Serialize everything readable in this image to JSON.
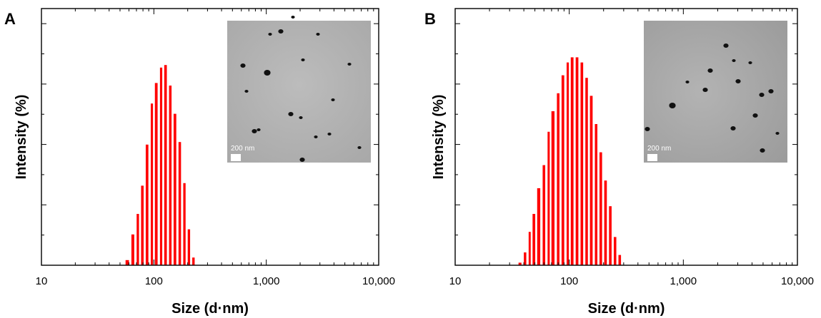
{
  "chart_data": [
    {
      "panel": "A",
      "type": "bar",
      "xlabel": "Size (d·nm)",
      "ylabel": "Intensity (%)",
      "x_scale": "log",
      "xlim": [
        10,
        10000
      ],
      "xticks": [
        "10",
        "100",
        "1,000",
        "10,000"
      ],
      "yticks_labeled": false,
      "bar_color": "#ff0000",
      "bars": [
        {
          "x": 58,
          "y": 2
        },
        {
          "x": 65,
          "y": 12
        },
        {
          "x": 72,
          "y": 20
        },
        {
          "x": 79,
          "y": 31
        },
        {
          "x": 87,
          "y": 47
        },
        {
          "x": 96,
          "y": 63
        },
        {
          "x": 105,
          "y": 71
        },
        {
          "x": 116,
          "y": 77
        },
        {
          "x": 127,
          "y": 78
        },
        {
          "x": 140,
          "y": 70
        },
        {
          "x": 154,
          "y": 59
        },
        {
          "x": 170,
          "y": 48
        },
        {
          "x": 187,
          "y": 32
        },
        {
          "x": 205,
          "y": 14
        },
        {
          "x": 225,
          "y": 3
        }
      ],
      "inset": {
        "scale_label": "200 nm"
      }
    },
    {
      "panel": "B",
      "type": "bar",
      "xlabel": "Size (d·nm)",
      "ylabel": "Intensity (%)",
      "x_scale": "log",
      "xlim": [
        10,
        10000
      ],
      "xticks": [
        "10",
        "100",
        "1,000",
        "10,000"
      ],
      "yticks_labeled": false,
      "bar_color": "#ff0000",
      "bars": [
        {
          "x": 37,
          "y": 1
        },
        {
          "x": 41,
          "y": 5
        },
        {
          "x": 45,
          "y": 13
        },
        {
          "x": 49,
          "y": 20
        },
        {
          "x": 54,
          "y": 30
        },
        {
          "x": 60,
          "y": 39
        },
        {
          "x": 66,
          "y": 52
        },
        {
          "x": 72,
          "y": 60
        },
        {
          "x": 80,
          "y": 67
        },
        {
          "x": 88,
          "y": 74
        },
        {
          "x": 97,
          "y": 79
        },
        {
          "x": 106,
          "y": 81
        },
        {
          "x": 117,
          "y": 81
        },
        {
          "x": 129,
          "y": 79
        },
        {
          "x": 142,
          "y": 73
        },
        {
          "x": 156,
          "y": 66
        },
        {
          "x": 172,
          "y": 55
        },
        {
          "x": 189,
          "y": 44
        },
        {
          "x": 208,
          "y": 33
        },
        {
          "x": 229,
          "y": 23
        },
        {
          "x": 252,
          "y": 11
        },
        {
          "x": 277,
          "y": 4
        }
      ],
      "inset": {
        "scale_label": "200 nm"
      }
    }
  ],
  "colors": {
    "bar": "#ff0000",
    "axis": "#000000",
    "inset_bg_A": "#b4b4b4",
    "inset_bg_B": "#a9a9a9"
  }
}
